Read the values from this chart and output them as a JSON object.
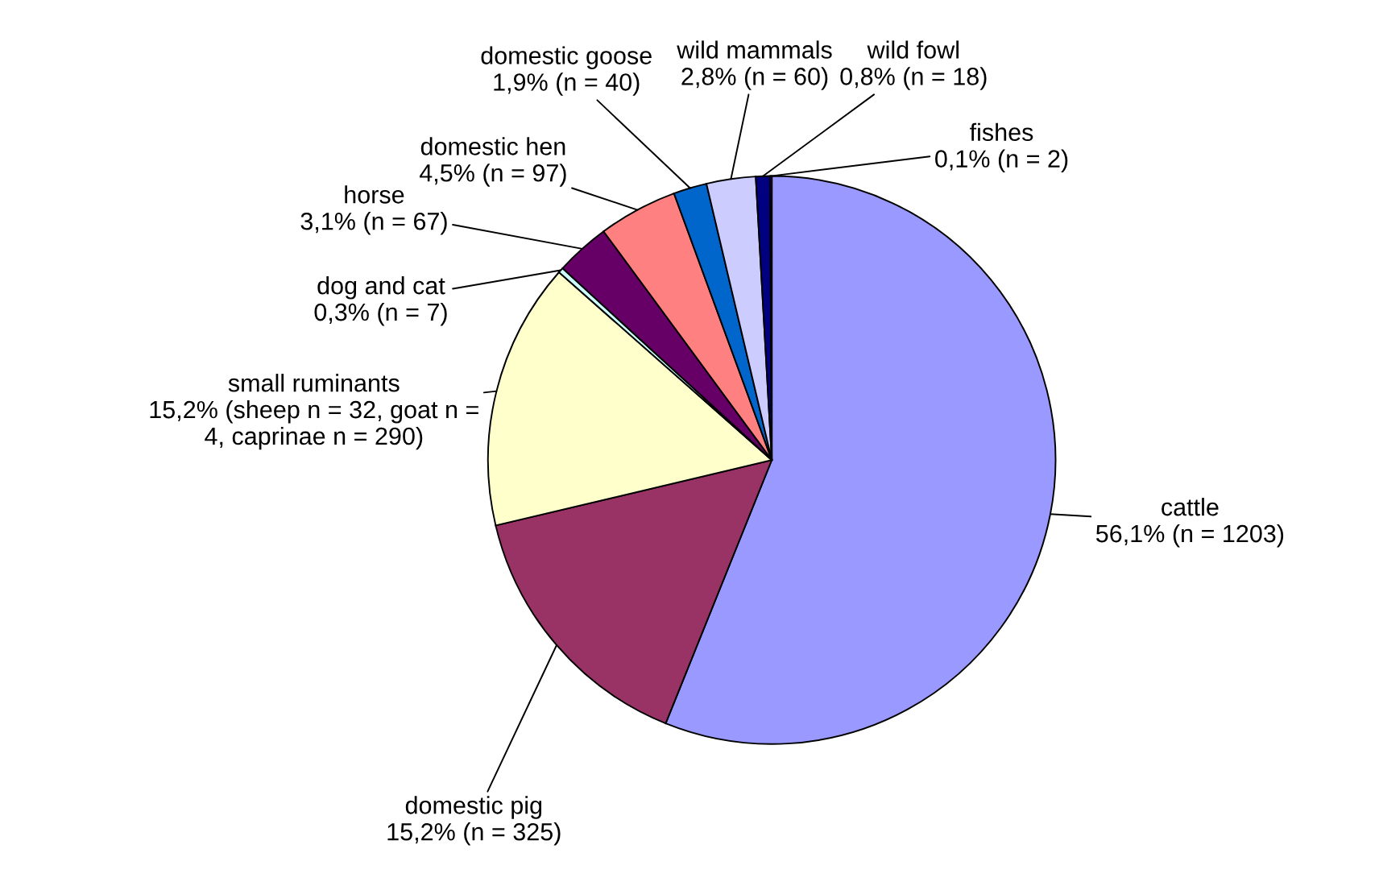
{
  "chart_data": {
    "type": "pie",
    "categories": [
      "cattle",
      "domestic pig",
      "small ruminants",
      "dog and cat",
      "horse",
      "domestic hen",
      "domestic goose",
      "wild mammals",
      "wild fowl",
      "fishes"
    ],
    "values": [
      56.1,
      15.2,
      15.2,
      0.3,
      3.1,
      4.5,
      1.9,
      2.8,
      0.8,
      0.1
    ],
    "colors": [
      "#9999ff",
      "#993366",
      "#ffffcc",
      "#ccffff",
      "#660066",
      "#ff8080",
      "#0066cc",
      "#ccccff",
      "#000080",
      "#ff00ff"
    ],
    "value_labels": [
      "56,1% (n = 1203)",
      "15,2% (n = 325)",
      "15,2% (sheep n = 32, goat n =\n4, caprinae n = 290)",
      "0,3% (n = 7)",
      "3,1% (n = 67)",
      "4,5% (n = 97)",
      "1,9% (n = 40)",
      "2,8% (n = 60)",
      "0,8% (n = 18)",
      "0,1% (n = 2)"
    ]
  }
}
